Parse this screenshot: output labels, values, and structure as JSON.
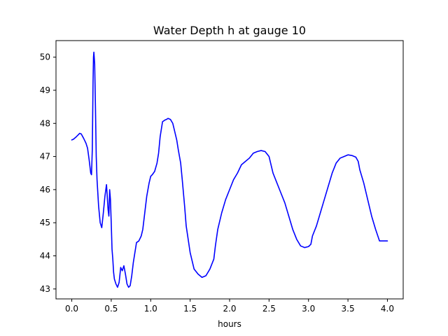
{
  "chart_data": {
    "type": "line",
    "title": "Water Depth h at gauge 10",
    "xlabel": "hours",
    "ylabel": "",
    "xlim": [
      -0.2,
      4.2
    ],
    "ylim": [
      42.7,
      50.5
    ],
    "xticks": [
      0.0,
      0.5,
      1.0,
      1.5,
      2.0,
      2.5,
      3.0,
      3.5,
      4.0
    ],
    "xtick_labels": [
      "0.0",
      "0.5",
      "1.0",
      "1.5",
      "2.0",
      "2.5",
      "3.0",
      "3.5",
      "4.0"
    ],
    "yticks": [
      43,
      44,
      45,
      46,
      47,
      48,
      49,
      50
    ],
    "ytick_labels": [
      "43",
      "44",
      "45",
      "46",
      "47",
      "48",
      "49",
      "50"
    ],
    "grid": false,
    "color": "#0000ff",
    "series": [
      {
        "x": [
          0.0,
          0.02,
          0.05,
          0.08,
          0.1,
          0.12,
          0.15,
          0.18,
          0.2,
          0.22,
          0.24,
          0.25,
          0.26,
          0.27,
          0.275,
          0.28,
          0.29,
          0.3,
          0.31,
          0.32,
          0.34,
          0.36,
          0.38,
          0.4,
          0.42,
          0.44,
          0.46,
          0.47,
          0.48,
          0.49,
          0.5,
          0.51,
          0.52,
          0.53,
          0.54,
          0.56,
          0.58,
          0.6,
          0.62,
          0.64,
          0.66,
          0.68,
          0.7,
          0.72,
          0.74,
          0.76,
          0.78,
          0.8,
          0.82,
          0.85,
          0.88,
          0.9,
          0.92,
          0.95,
          0.98,
          1.0,
          1.02,
          1.05,
          1.08,
          1.1,
          1.12,
          1.15,
          1.18,
          1.2,
          1.22,
          1.25,
          1.28,
          1.3,
          1.33,
          1.35,
          1.38,
          1.4,
          1.43,
          1.45,
          1.5,
          1.55,
          1.6,
          1.65,
          1.7,
          1.75,
          1.8,
          1.82,
          1.85,
          1.9,
          1.95,
          2.0,
          2.05,
          2.1,
          2.15,
          2.2,
          2.25,
          2.3,
          2.35,
          2.4,
          2.45,
          2.5,
          2.52,
          2.55,
          2.6,
          2.65,
          2.7,
          2.75,
          2.8,
          2.85,
          2.9,
          2.95,
          3.0,
          3.03,
          3.05,
          3.1,
          3.15,
          3.2,
          3.25,
          3.3,
          3.35,
          3.4,
          3.45,
          3.5,
          3.55,
          3.6,
          3.63,
          3.65,
          3.7,
          3.75,
          3.8,
          3.85,
          3.9,
          3.95,
          4.0
        ],
        "y": [
          47.5,
          47.52,
          47.58,
          47.65,
          47.7,
          47.68,
          47.55,
          47.4,
          47.25,
          46.9,
          46.5,
          46.45,
          47.2,
          49.3,
          50.0,
          50.15,
          49.8,
          48.5,
          47.0,
          46.3,
          45.5,
          45.0,
          44.85,
          45.3,
          45.8,
          46.15,
          45.4,
          45.2,
          46.0,
          45.7,
          45.0,
          44.2,
          43.9,
          43.5,
          43.3,
          43.15,
          43.05,
          43.2,
          43.65,
          43.55,
          43.7,
          43.45,
          43.15,
          43.05,
          43.1,
          43.4,
          43.8,
          44.1,
          44.4,
          44.45,
          44.6,
          44.8,
          45.2,
          45.8,
          46.2,
          46.4,
          46.45,
          46.55,
          46.8,
          47.1,
          47.6,
          48.05,
          48.1,
          48.12,
          48.15,
          48.12,
          48.0,
          47.8,
          47.5,
          47.2,
          46.8,
          46.3,
          45.5,
          44.9,
          44.1,
          43.6,
          43.45,
          43.35,
          43.4,
          43.6,
          43.9,
          44.3,
          44.8,
          45.3,
          45.7,
          46.0,
          46.3,
          46.5,
          46.75,
          46.85,
          46.95,
          47.1,
          47.15,
          47.18,
          47.15,
          47.0,
          46.8,
          46.5,
          46.2,
          45.9,
          45.6,
          45.2,
          44.8,
          44.5,
          44.3,
          44.25,
          44.28,
          44.35,
          44.6,
          44.9,
          45.3,
          45.7,
          46.1,
          46.5,
          46.8,
          46.95,
          47.0,
          47.05,
          47.03,
          46.98,
          46.85,
          46.6,
          46.2,
          45.7,
          45.2,
          44.8,
          44.45,
          44.45,
          44.45
        ]
      }
    ]
  }
}
